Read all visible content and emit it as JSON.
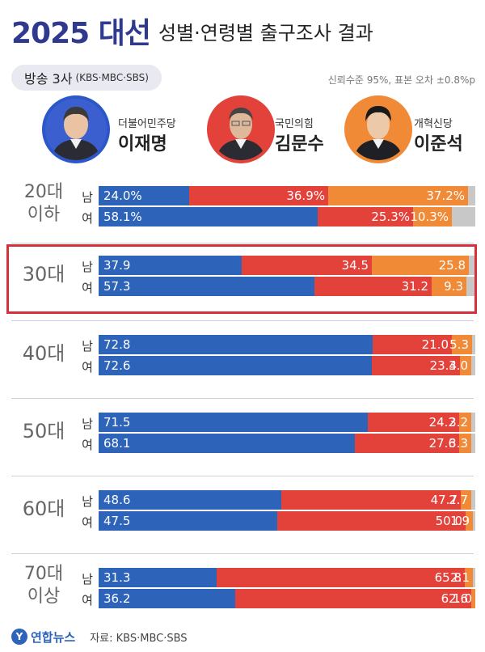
{
  "header": {
    "title_year": "2025 대선",
    "title_rest": "성별·연령별 출구조사 결과",
    "broadcaster_main": "방송 3사",
    "broadcaster_detail": "(KBS·MBC·SBS)",
    "confidence": "신뢰수준 95%, 표본 오차 ±0.8%p"
  },
  "candidates": [
    {
      "party": "더불어민주당",
      "name": "이재명",
      "color": "#2d63b8"
    },
    {
      "party": "국민의힘",
      "name": "김문수",
      "color": "#e3423b"
    },
    {
      "party": "개혁신당",
      "name": "이준석",
      "color": "#f08a37"
    }
  ],
  "colors": {
    "blue": "#2d63b8",
    "red": "#e3423b",
    "orange": "#f08a37",
    "other": "#c8c8c8",
    "highlight": "#d6313a"
  },
  "chart_data": {
    "type": "bar",
    "stacked": true,
    "orientation": "horizontal",
    "title": "2025 대선 성별·연령별 출구조사 결과",
    "series_names": [
      "이재명",
      "김문수",
      "이준석"
    ],
    "highlighted_group": "30대",
    "groups": [
      {
        "age": "20대 이하",
        "rows": [
          {
            "sex": "남",
            "values": [
              24.0,
              36.9,
              37.2
            ],
            "labels": [
              "24.0%",
              "36.9%",
              "37.2%"
            ]
          },
          {
            "sex": "여",
            "values": [
              58.1,
              25.3,
              10.3
            ],
            "labels": [
              "58.1%",
              "25.3%",
              "10.3%"
            ]
          }
        ]
      },
      {
        "age": "30대",
        "rows": [
          {
            "sex": "남",
            "values": [
              37.9,
              34.5,
              25.8
            ],
            "labels": [
              "37.9",
              "34.5",
              "25.8"
            ]
          },
          {
            "sex": "여",
            "values": [
              57.3,
              31.2,
              9.3
            ],
            "labels": [
              "57.3",
              "31.2",
              "9.3"
            ]
          }
        ]
      },
      {
        "age": "40대",
        "rows": [
          {
            "sex": "남",
            "values": [
              72.8,
              21.0,
              5.3
            ],
            "labels": [
              "72.8",
              "21.0",
              "5.3"
            ]
          },
          {
            "sex": "여",
            "values": [
              72.6,
              23.4,
              3.0
            ],
            "labels": [
              "72.6",
              "23.4",
              "3.0"
            ]
          }
        ]
      },
      {
        "age": "50대",
        "rows": [
          {
            "sex": "남",
            "values": [
              71.5,
              24.2,
              3.2
            ],
            "labels": [
              "71.5",
              "24.2",
              "3.2"
            ]
          },
          {
            "sex": "여",
            "values": [
              68.1,
              27.6,
              3.3
            ],
            "labels": [
              "68.1",
              "27.6",
              "3.3"
            ]
          }
        ]
      },
      {
        "age": "60대",
        "rows": [
          {
            "sex": "남",
            "values": [
              48.6,
              47.7,
              2.7
            ],
            "labels": [
              "48.6",
              "47.7",
              "2.7"
            ]
          },
          {
            "sex": "여",
            "values": [
              47.5,
              50.0,
              1.9
            ],
            "labels": [
              "47.5",
              "50.0",
              "1.9"
            ]
          }
        ]
      },
      {
        "age": "70대 이상",
        "rows": [
          {
            "sex": "남",
            "values": [
              31.3,
              65.8,
              2.1
            ],
            "labels": [
              "31.3",
              "65.8",
              "2.1"
            ]
          },
          {
            "sex": "여",
            "values": [
              36.2,
              62.6,
              1.0
            ],
            "labels": [
              "36.2",
              "62.6",
              "1.0"
            ]
          }
        ]
      }
    ]
  },
  "footer": {
    "logo": "연합뉴스",
    "credit": "자료: KBS·MBC·SBS"
  }
}
